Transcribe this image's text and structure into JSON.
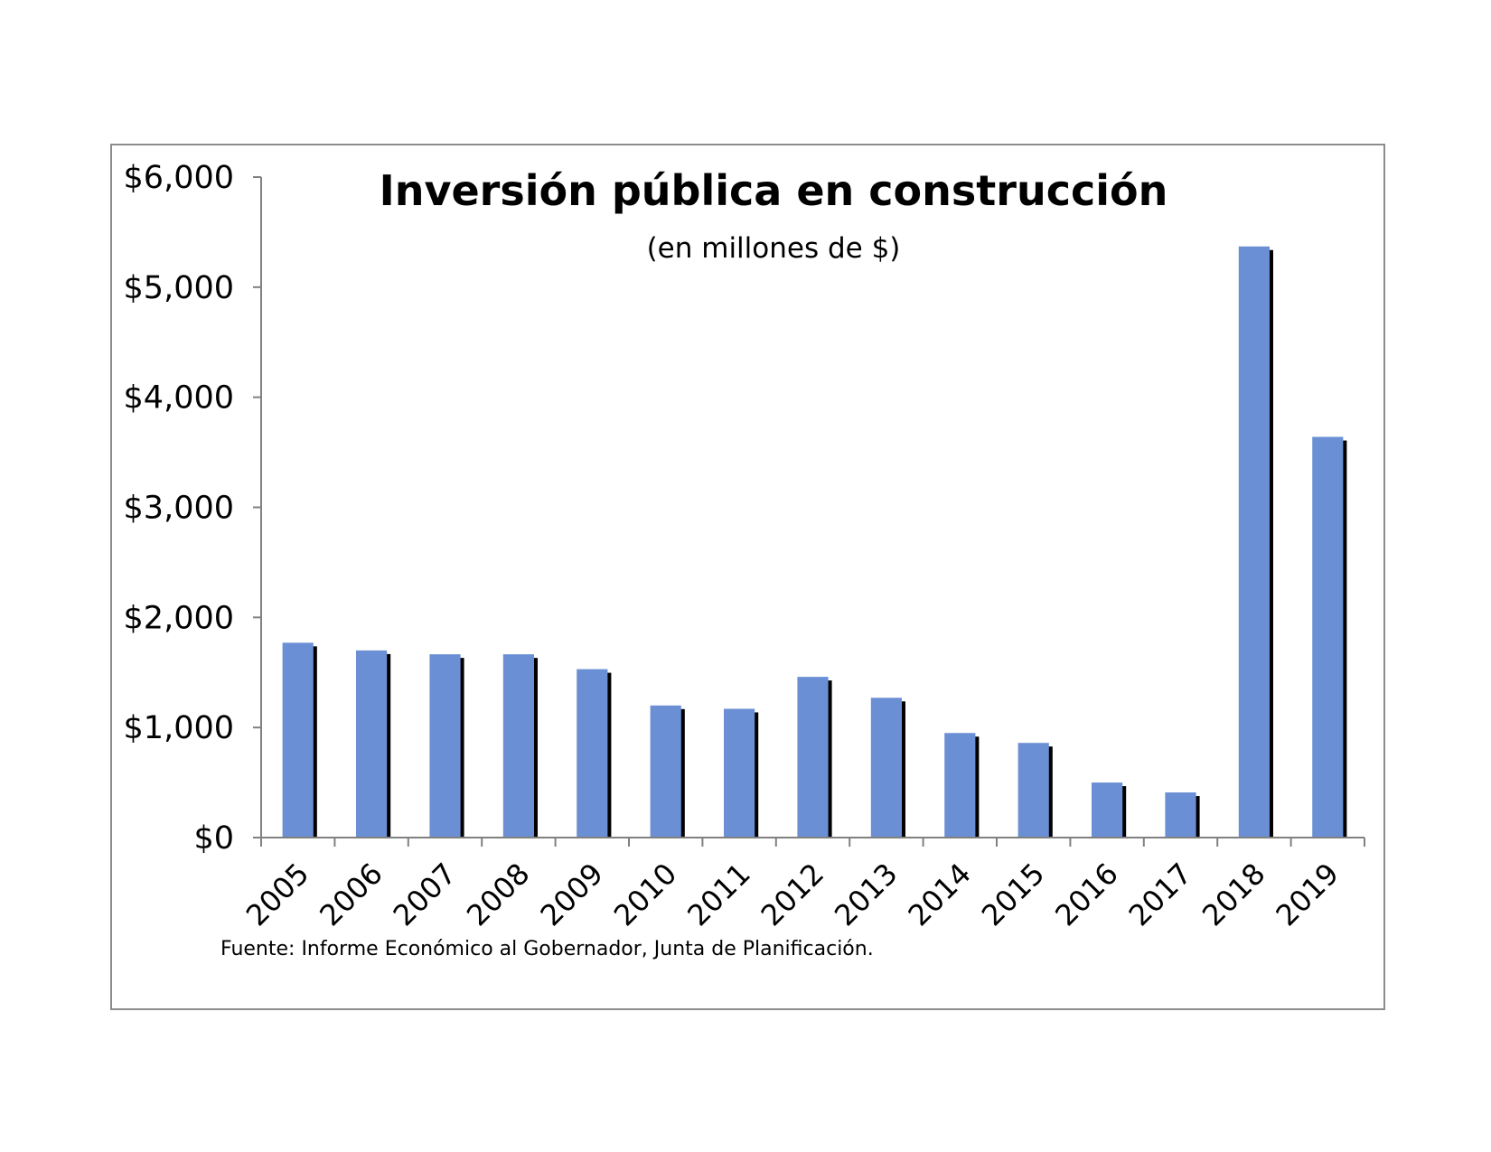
{
  "chart_data": {
    "type": "bar",
    "title": "Inversión pública en construcción",
    "subtitle": "(en millones de $)",
    "xlabel": "",
    "ylabel": "",
    "source": "Fuente: Informe Económico al Gobernador, Junta de Planificación.",
    "categories": [
      "2005",
      "2006",
      "2007",
      "2008",
      "2009",
      "2010",
      "2011",
      "2012",
      "2013",
      "2014",
      "2015",
      "2016",
      "2017",
      "2018",
      "2019"
    ],
    "values": [
      1770,
      1700,
      1665,
      1665,
      1530,
      1200,
      1170,
      1460,
      1270,
      950,
      860,
      500,
      410,
      5370,
      3640
    ],
    "ylim": [
      0,
      6000
    ],
    "yticks": [
      0,
      1000,
      2000,
      3000,
      4000,
      5000,
      6000
    ],
    "ytick_labels": [
      "$0",
      "$1,000",
      "$2,000",
      "$3,000",
      "$4,000",
      "$5,000",
      "$6,000"
    ],
    "grid": false,
    "legend": "none",
    "colors": {
      "bar": "#6b8fd4",
      "bar_shadow": "#000000",
      "axis": "#808080",
      "frame": "#8c8c8c"
    }
  }
}
